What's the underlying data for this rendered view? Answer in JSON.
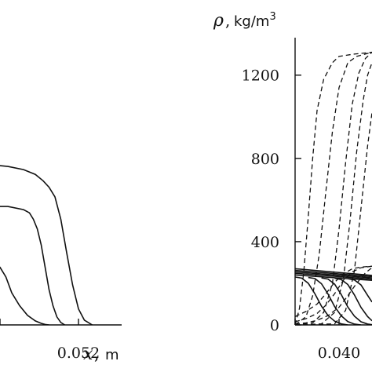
{
  "chart_data": [
    {
      "type": "line",
      "panel": "left",
      "xlabel": "x",
      "xunit": "m",
      "xticks": [
        0.048,
        0.052
      ],
      "xtick_labels": [
        "",
        "0.052"
      ],
      "xlim": [
        0.0476,
        0.0544
      ],
      "ylim": [
        0,
        1
      ],
      "yticks": [],
      "series": [
        {
          "style": "solid",
          "x": [
            0.0476,
            0.048,
            0.0483,
            0.0486,
            0.049,
            0.0494,
            0.0498,
            0.0501,
            0.0503,
            0.0505
          ],
          "y": [
            0.4,
            0.36,
            0.3,
            0.2,
            0.12,
            0.06,
            0.025,
            0.01,
            0.003,
            0.0
          ]
        },
        {
          "style": "solid",
          "x": [
            0.0476,
            0.0484,
            0.0492,
            0.0495,
            0.0497,
            0.0499,
            0.0501,
            0.0503,
            0.0505,
            0.0507,
            0.0509,
            0.0511,
            0.0513
          ],
          "y": [
            0.74,
            0.74,
            0.72,
            0.7,
            0.66,
            0.6,
            0.5,
            0.36,
            0.22,
            0.12,
            0.05,
            0.015,
            0.0
          ]
        },
        {
          "style": "solid",
          "x": [
            0.0476,
            0.0484,
            0.0492,
            0.0498,
            0.0502,
            0.0505,
            0.0508,
            0.0511,
            0.0514,
            0.0517,
            0.052,
            0.0523,
            0.0527
          ],
          "y": [
            1.0,
            0.99,
            0.97,
            0.94,
            0.9,
            0.86,
            0.8,
            0.66,
            0.45,
            0.25,
            0.1,
            0.03,
            0.0
          ]
        }
      ]
    },
    {
      "type": "line",
      "panel": "right",
      "ylabel": "ρ",
      "yunit": "kg/m3",
      "yticks": [
        0,
        400,
        800,
        1200
      ],
      "ytick_labels": [
        "0",
        "400",
        "800",
        "1200"
      ],
      "ylim": [
        0,
        1380
      ],
      "xticks": [
        0.0398,
        0.04
      ],
      "xtick_labels": [
        "",
        "0.040"
      ],
      "xlim": [
        0.0398,
        0.04015
      ],
      "series": [
        {
          "style": "dashed",
          "x": [
            0.0398,
            0.03985,
            0.0399,
            0.03994,
            0.03998,
            0.04002,
            0.04006,
            0.0401,
            0.04015
          ],
          "y": [
            40,
            65,
            100,
            150,
            205,
            245,
            270,
            278,
            282
          ]
        },
        {
          "style": "dashed",
          "x": [
            0.0398,
            0.03985,
            0.0399,
            0.03994,
            0.03998,
            0.04002,
            0.04006,
            0.0401,
            0.04015
          ],
          "y": [
            15,
            30,
            55,
            95,
            150,
            215,
            255,
            275,
            282
          ]
        },
        {
          "style": "dashed",
          "x": [
            0.0398,
            0.03985,
            0.0399,
            0.03995,
            0.04,
            0.04004,
            0.04008,
            0.04012,
            0.04015
          ],
          "y": [
            5,
            10,
            22,
            45,
            85,
            140,
            200,
            250,
            275
          ]
        },
        {
          "style": "dashed",
          "x": [
            0.0398,
            0.03982,
            0.03984,
            0.03986,
            0.03988,
            0.0399,
            0.03993,
            0.03997,
            0.04,
            0.04006,
            0.04015
          ],
          "y": [
            0,
            80,
            260,
            520,
            800,
            1030,
            1180,
            1260,
            1290,
            1300,
            1310
          ]
        },
        {
          "style": "dashed",
          "x": [
            0.0398,
            0.03985,
            0.03988,
            0.03991,
            0.03994,
            0.03997,
            0.04,
            0.04004,
            0.04008,
            0.04015
          ],
          "y": [
            0,
            40,
            140,
            340,
            640,
            930,
            1140,
            1260,
            1290,
            1310
          ]
        },
        {
          "style": "dashed",
          "x": [
            0.0398,
            0.03988,
            0.03993,
            0.03997,
            0.04,
            0.04003,
            0.04006,
            0.04009,
            0.04012,
            0.04015
          ],
          "y": [
            0,
            10,
            60,
            200,
            460,
            780,
            1060,
            1210,
            1280,
            1310
          ]
        },
        {
          "style": "dashed",
          "x": [
            0.0398,
            0.03992,
            0.03998,
            0.04002,
            0.04005,
            0.04008,
            0.04011,
            0.04013,
            0.04015
          ],
          "y": [
            0,
            5,
            60,
            220,
            500,
            830,
            1080,
            1200,
            1260
          ]
        },
        {
          "style": "dashed",
          "x": [
            0.0398,
            0.03998,
            0.04003,
            0.04007,
            0.0401,
            0.04013,
            0.04015
          ],
          "y": [
            0,
            5,
            70,
            260,
            560,
            860,
            1020
          ]
        },
        {
          "style": "solid",
          "x": [
            0.0398,
            0.04015
          ],
          "y": [
            270,
            238
          ]
        },
        {
          "style": "solid",
          "x": [
            0.0398,
            0.04015
          ],
          "y": [
            262,
            232
          ]
        },
        {
          "style": "solid",
          "x": [
            0.0398,
            0.04015
          ],
          "y": [
            255,
            226
          ]
        },
        {
          "style": "solid",
          "x": [
            0.0398,
            0.04015
          ],
          "y": [
            248,
            220
          ]
        },
        {
          "style": "solid",
          "x": [
            0.0398,
            0.04015
          ],
          "y": [
            240,
            214
          ]
        },
        {
          "style": "solid",
          "x": [
            0.0398,
            0.03983,
            0.03986,
            0.03989,
            0.03992,
            0.03995,
            0.03998,
            0.04001,
            0.04004
          ],
          "y": [
            230,
            225,
            200,
            150,
            90,
            45,
            18,
            5,
            0
          ]
        },
        {
          "style": "solid",
          "x": [
            0.03986,
            0.03989,
            0.03992,
            0.03995,
            0.03998,
            0.04001,
            0.04004,
            0.04007,
            0.0401
          ],
          "y": [
            228,
            223,
            198,
            148,
            88,
            44,
            16,
            4,
            0
          ]
        },
        {
          "style": "solid",
          "x": [
            0.03992,
            0.03995,
            0.03998,
            0.04001,
            0.04004,
            0.04007,
            0.0401,
            0.04013,
            0.04015
          ],
          "y": [
            226,
            220,
            196,
            146,
            86,
            42,
            15,
            4,
            1
          ]
        },
        {
          "style": "solid",
          "x": [
            0.03998,
            0.04001,
            0.04004,
            0.04007,
            0.0401,
            0.04013,
            0.04015
          ],
          "y": [
            224,
            218,
            194,
            144,
            84,
            40,
            20
          ]
        },
        {
          "style": "solid",
          "x": [
            0.04004,
            0.04007,
            0.0401,
            0.04013,
            0.04015
          ],
          "y": [
            222,
            216,
            192,
            142,
            110
          ]
        }
      ]
    }
  ]
}
